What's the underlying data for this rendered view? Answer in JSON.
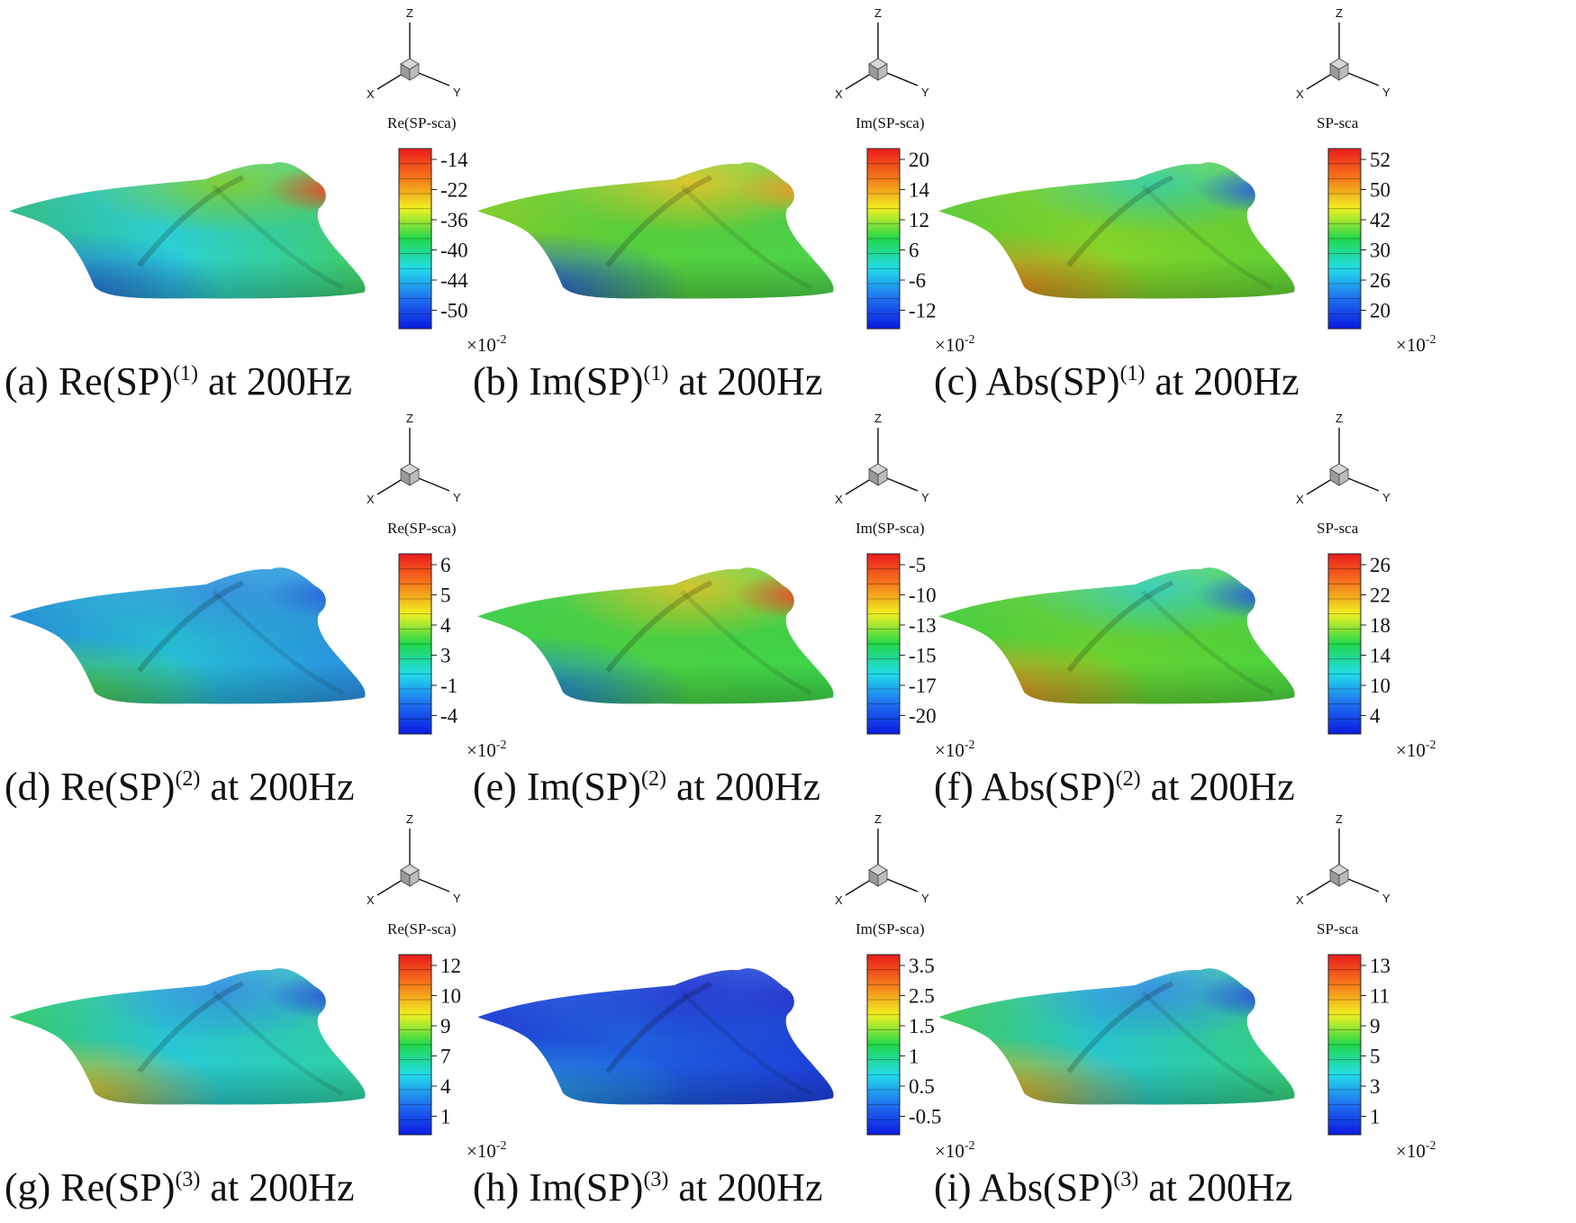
{
  "figure": {
    "scale_label": "×10",
    "scale_exponent": "-2",
    "axis_labels": {
      "z": "Z",
      "x": "X",
      "y": "Y"
    },
    "colormap": [
      "#0a1be0",
      "#1f6ff0",
      "#22dcea",
      "#22d84a",
      "#f0f021",
      "#f57a1b",
      "#ea1c1c"
    ],
    "panels": [
      {
        "id": "a",
        "caption": {
          "prefix": "(a) Re(SP)",
          "sup": "(1)",
          "suffix": " at 200Hz"
        },
        "colorbar_title": "Re(SP-sca)",
        "ticks": [
          "-14",
          "-22",
          "-36",
          "-40",
          "-44",
          "-50"
        ],
        "surface": {
          "left": "#30c089",
          "center": "#2cd2d8",
          "back": "#78cf2a",
          "front": "#2565dd",
          "tip": "#3fce6a",
          "wingtip": "#e84320"
        }
      },
      {
        "id": "b",
        "caption": {
          "prefix": "(b) Im(SP)",
          "sup": "(1)",
          "suffix": " at 200Hz"
        },
        "colorbar_title": "Im(SP-sca)",
        "ticks": [
          "20",
          "14",
          "12",
          "6",
          "-6",
          "-12"
        ],
        "surface": {
          "left": "#86d22a",
          "center": "#55d23c",
          "back": "#dcc61f",
          "front": "#1d4ee3",
          "tip": "#4dd24a",
          "wingtip": "#ee9a1d"
        }
      },
      {
        "id": "c",
        "caption": {
          "prefix": "(c) Abs(SP)",
          "sup": "(1)",
          "suffix": " at 200Hz"
        },
        "colorbar_title": "SP-sca",
        "ticks": [
          "52",
          "50",
          "42",
          "30",
          "26",
          "20"
        ],
        "surface": {
          "left": "#5fd035",
          "center": "#86d629",
          "back": "#2fcf9c",
          "front": "#f07d19",
          "tip": "#5fd035",
          "wingtip": "#1f5ce0"
        }
      },
      {
        "id": "d",
        "caption": {
          "prefix": "(d) Re(SP)",
          "sup": "(2)",
          "suffix": " at 200Hz"
        },
        "colorbar_title": "Re(SP-sca)",
        "ticks": [
          "6",
          "5",
          "4",
          "3",
          "-1",
          "-4"
        ],
        "surface": {
          "left": "#2490dc",
          "center": "#27bfd6",
          "back": "#2a8fe0",
          "front": "#4fd23a",
          "tip": "#2a8fe0",
          "wingtip": "#1f63de"
        }
      },
      {
        "id": "e",
        "caption": {
          "prefix": "(e) Im(SP)",
          "sup": "(2)",
          "suffix": " at 200Hz"
        },
        "colorbar_title": "Im(SP-sca)",
        "ticks": [
          "-5",
          "-10",
          "-13",
          "-15",
          "-17",
          "-20"
        ],
        "surface": {
          "left": "#3ed44a",
          "center": "#4cd342",
          "back": "#cfc51f",
          "front": "#1f78e2",
          "tip": "#3ed44a",
          "wingtip": "#e9471d"
        }
      },
      {
        "id": "f",
        "caption": {
          "prefix": "(f) Abs(SP)",
          "sup": "(2)",
          "suffix": " at 200Hz"
        },
        "colorbar_title": "SP-sca",
        "ticks": [
          "26",
          "22",
          "18",
          "14",
          "10",
          "4"
        ],
        "surface": {
          "left": "#47d33f",
          "center": "#6ad431",
          "back": "#2fd0b8",
          "front": "#f0891a",
          "tip": "#4ad33e",
          "wingtip": "#1f55de"
        }
      },
      {
        "id": "g",
        "caption": {
          "prefix": "(g) Re(SP)",
          "sup": "(3)",
          "suffix": " at 200Hz"
        },
        "colorbar_title": "Re(SP-sca)",
        "ticks": [
          "12",
          "10",
          "9",
          "7",
          "4",
          "1"
        ],
        "surface": {
          "left": "#35cf6a",
          "center": "#28c9d8",
          "back": "#2a8fe0",
          "front": "#f2b61b",
          "tip": "#2fd0a0",
          "wingtip": "#1f4fdc"
        }
      },
      {
        "id": "h",
        "caption": {
          "prefix": "(h) Im(SP)",
          "sup": "(3)",
          "suffix": " at 200Hz"
        },
        "colorbar_title": "Im(SP-sca)",
        "ticks": [
          "3.5",
          "2.5",
          "1.5",
          "1",
          "0.5",
          "-0.5"
        ],
        "surface": {
          "left": "#1e3fdb",
          "center": "#1f5fe0",
          "back": "#1a32d4",
          "front": "#2aa0de",
          "tip": "#1e3fdb",
          "wingtip": "#1c2fd2"
        }
      },
      {
        "id": "i",
        "caption": {
          "prefix": "(i) Abs(SP)",
          "sup": "(3)",
          "suffix": " at 200Hz"
        },
        "colorbar_title": "SP-sca",
        "ticks": [
          "13",
          "11",
          "9",
          "5",
          "3",
          "1"
        ],
        "surface": {
          "left": "#3ed15a",
          "center": "#27c8d2",
          "back": "#2a8fe0",
          "front": "#f2a81b",
          "tip": "#35d07a",
          "wingtip": "#1f4fdc"
        }
      }
    ]
  }
}
